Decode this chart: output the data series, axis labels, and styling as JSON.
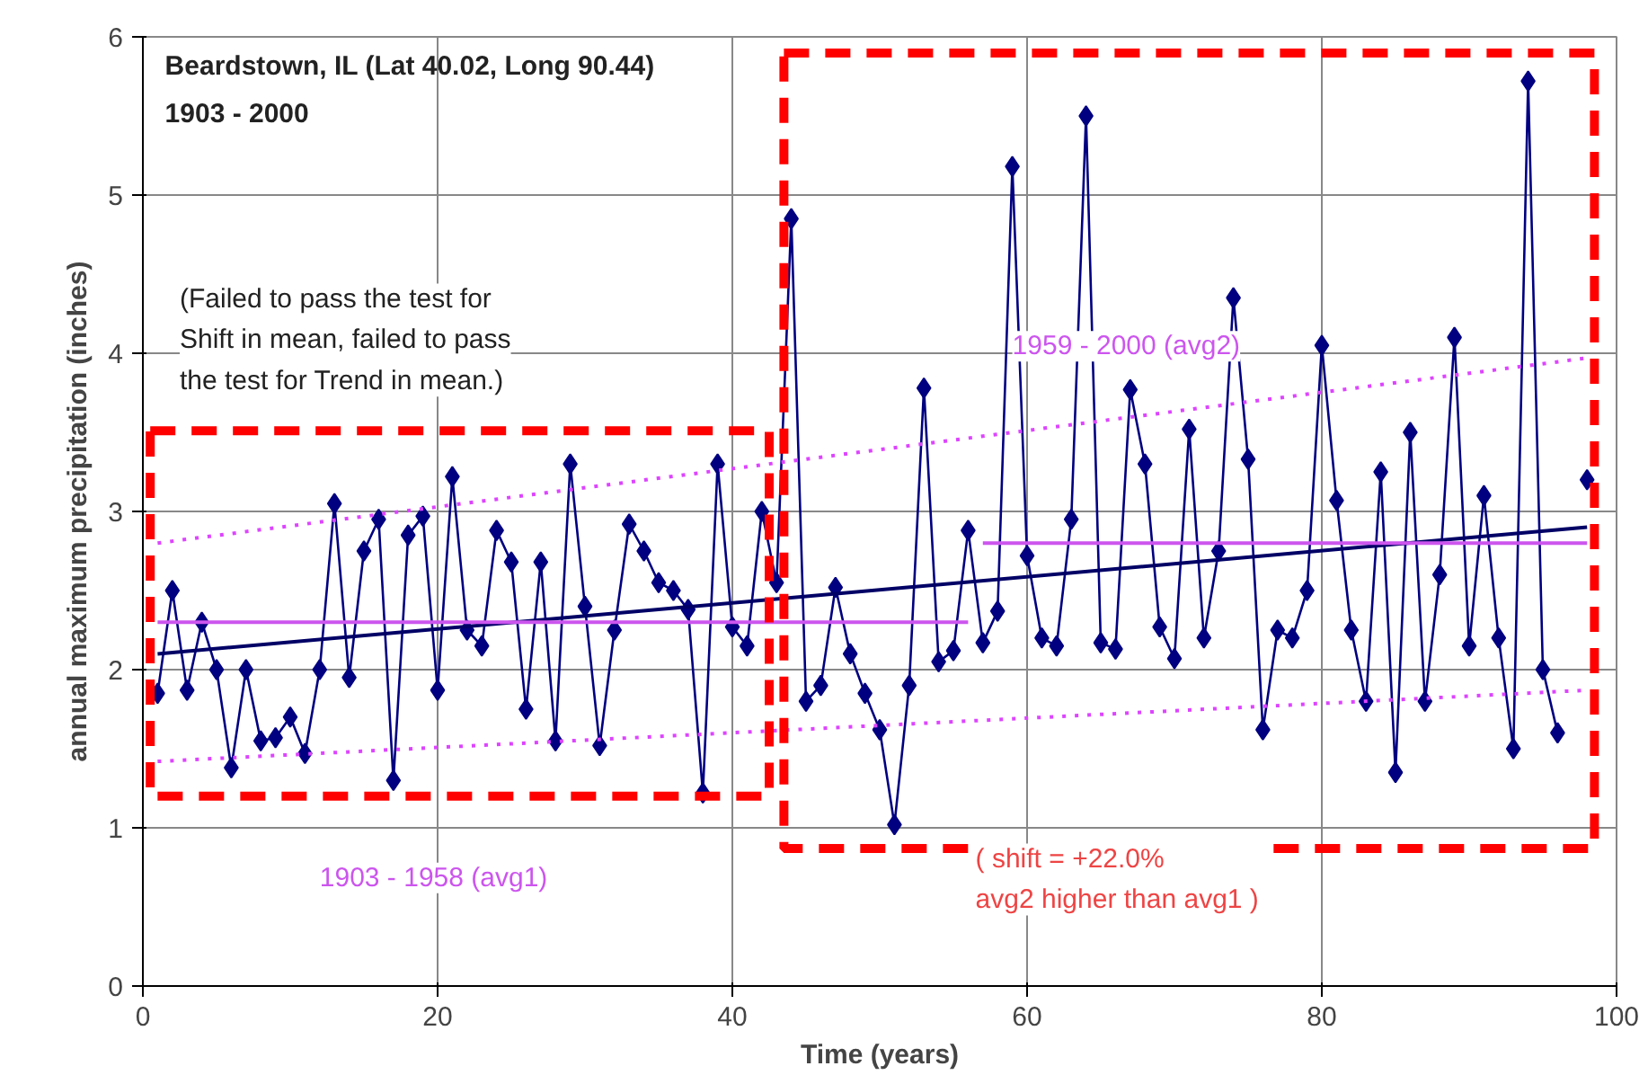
{
  "chart_data": {
    "type": "line",
    "title": "Beardstown, IL (Lat 40.02, Long 90.44)",
    "subtitle": "1903 - 2000",
    "xlabel": "Time (years)",
    "ylabel": "annual maximum precipitation (inches)",
    "annotations": [
      "(Failed to pass the test for\nShift in mean, failed to pass\nthe test for Trend in mean.)",
      "1903 - 1958 (avg1)",
      "1959 - 2000 (avg2)",
      "( shift = +22.0%\navg2 higher than avg1 )"
    ],
    "x": [
      1,
      2,
      3,
      4,
      5,
      6,
      7,
      8,
      9,
      10,
      11,
      12,
      13,
      14,
      15,
      16,
      17,
      18,
      19,
      20,
      21,
      22,
      23,
      24,
      25,
      26,
      27,
      28,
      29,
      30,
      31,
      32,
      33,
      34,
      35,
      36,
      37,
      38,
      39,
      40,
      41,
      42,
      43,
      44,
      45,
      46,
      47,
      48,
      49,
      50,
      51,
      52,
      53,
      54,
      55,
      56,
      57,
      58,
      59,
      60,
      61,
      62,
      63,
      64,
      65,
      66,
      67,
      68,
      69,
      70,
      71,
      72,
      73,
      74,
      75,
      76,
      77,
      78,
      79,
      80,
      81,
      82,
      83,
      84,
      85,
      86,
      87,
      88,
      89,
      90,
      91,
      92,
      93,
      94,
      95,
      96,
      97,
      98
    ],
    "series": [
      {
        "color": "#000080",
        "marker": "diamond",
        "values": [
          1.85,
          2.5,
          1.87,
          2.3,
          2.0,
          1.38,
          2.0,
          1.55,
          1.57,
          1.7,
          1.47,
          2.0,
          3.05,
          1.95,
          2.75,
          2.95,
          1.3,
          2.85,
          2.97,
          1.87,
          3.22,
          2.25,
          2.15,
          2.88,
          2.68,
          1.75,
          2.68,
          1.55,
          3.3,
          2.4,
          1.52,
          2.25,
          2.92,
          2.75,
          2.55,
          2.5,
          2.38,
          1.22,
          3.3,
          2.27,
          2.15,
          3.0,
          2.55,
          4.85,
          1.8,
          1.9,
          2.52,
          2.1,
          1.85,
          1.62,
          1.02,
          1.9,
          3.78,
          2.05,
          2.12,
          2.88,
          2.17,
          2.37,
          5.18,
          2.72,
          2.2,
          2.15,
          2.95,
          5.5,
          2.17,
          2.13,
          3.77,
          3.3,
          2.27,
          2.07,
          3.52,
          2.2,
          2.75,
          4.35,
          3.33,
          1.62,
          2.25,
          2.2,
          2.5,
          4.05,
          3.07,
          2.25,
          1.8,
          3.25,
          1.35,
          3.5,
          1.8,
          2.6,
          4.1,
          2.15,
          3.1,
          2.2,
          1.5,
          5.72,
          2.0,
          1.6,
          null,
          3.2
        ]
      },
      {
        "color": "#000066",
        "x": [
          1,
          98
        ],
        "values": [
          2.1,
          2.9
        ]
      },
      {
        "color": "#cc55ee",
        "x": [
          1,
          56
        ],
        "values": [
          2.3,
          2.3
        ]
      },
      {
        "color": "#cc55ee",
        "x": [
          57,
          98
        ],
        "values": [
          2.8,
          2.8
        ]
      },
      {
        "color": "#dd44ff",
        "line_style": "dotted",
        "x": [
          1,
          98
        ],
        "values": [
          2.8,
          3.97
        ]
      },
      {
        "color": "#dd44ff",
        "line_style": "dotted",
        "x": [
          1,
          98
        ],
        "values": [
          1.42,
          1.87
        ]
      }
    ],
    "xlim": [
      0,
      100
    ],
    "ylim": [
      0,
      6
    ],
    "xticks": [
      0,
      20,
      40,
      60,
      80,
      100
    ],
    "yticks": [
      0,
      1,
      2,
      3,
      4,
      5,
      6
    ],
    "grid": true,
    "marker": "none",
    "line_style": "solid"
  }
}
